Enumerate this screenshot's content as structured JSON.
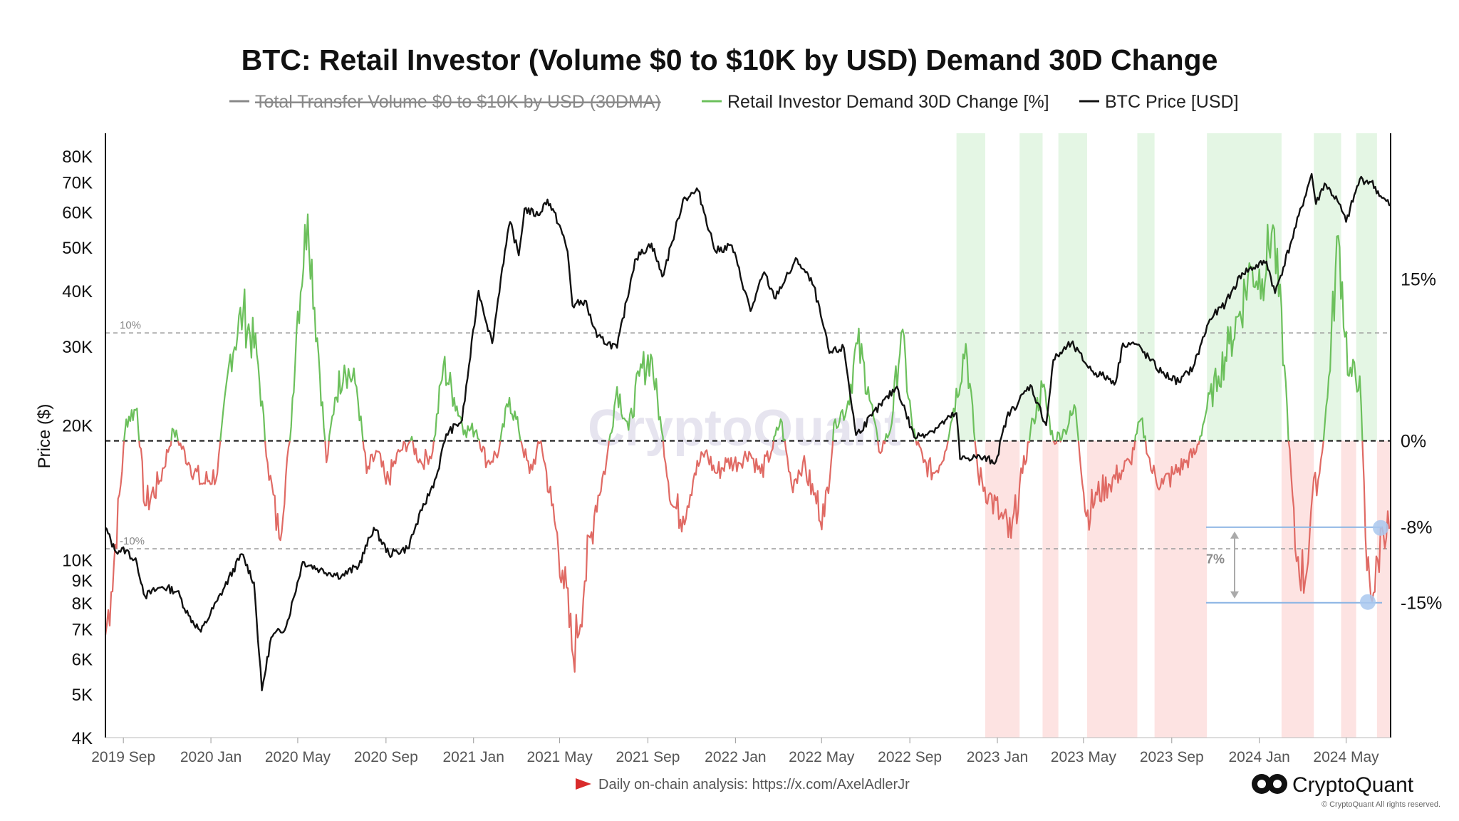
{
  "chart_data": {
    "type": "line",
    "title": "BTC: Retail Investor (Volume $0 to $10K by USD) Demand 30D Change",
    "legend": [
      {
        "label": "Total Transfer Volume  $0 to $10K by USD (30DMA)",
        "color": "#888888",
        "hidden": true
      },
      {
        "label": "Retail Investor Demand 30D Change [%]",
        "color": "#6cc05c",
        "hidden": false
      },
      {
        "label": "BTC Price [USD]",
        "color": "#111111",
        "hidden": false
      }
    ],
    "ylabel": "Price ($)",
    "left_axis": {
      "scale": "log",
      "range": [
        4000,
        90000
      ],
      "ticks": [
        "80K",
        "70K",
        "60K",
        "50K",
        "40K",
        "30K",
        "20K",
        "10K",
        "9K",
        "8K",
        "7K",
        "6K",
        "5K",
        "4K"
      ],
      "tick_values": [
        80000,
        70000,
        60000,
        50000,
        40000,
        30000,
        20000,
        10000,
        9000,
        8000,
        7000,
        6000,
        5000,
        4000
      ]
    },
    "right_axis": {
      "scale": "linear",
      "range": [
        -27.5,
        28.5
      ],
      "ticks": [
        "15%",
        "0%",
        "-8%",
        "-15%"
      ],
      "tick_values": [
        15,
        0,
        -8,
        -15
      ]
    },
    "x_axis": {
      "range": [
        "2019-08-07",
        "2024-07-02"
      ],
      "ticks": [
        "2019 Sep",
        "2020 Jan",
        "2020 May",
        "2020 Sep",
        "2021 Jan",
        "2021 May",
        "2021 Sep",
        "2022 Jan",
        "2022 May",
        "2022 Sep",
        "2023 Jan",
        "2023 May",
        "2023 Sep",
        "2024 Jan",
        "2024 May"
      ],
      "tick_dates": [
        "2019-09-01",
        "2020-01-01",
        "2020-05-01",
        "2020-09-01",
        "2021-01-01",
        "2021-05-01",
        "2021-09-01",
        "2022-01-01",
        "2022-05-01",
        "2022-09-01",
        "2023-01-01",
        "2023-05-01",
        "2023-09-01",
        "2024-01-01",
        "2024-05-01"
      ]
    },
    "reference_lines": [
      {
        "value": 10,
        "label": "10%",
        "style": "dashed",
        "color": "#9a9a9a"
      },
      {
        "value": 0,
        "label": "",
        "style": "dashed",
        "color": "#111111"
      },
      {
        "value": -10,
        "label": "-10%",
        "style": "dashed",
        "color": "#9a9a9a"
      }
    ],
    "shaded_bands": [
      {
        "start": "2022-11-05",
        "end": "2022-12-15",
        "sign": "positive"
      },
      {
        "start": "2022-12-15",
        "end": "2023-02-01",
        "sign": "negative"
      },
      {
        "start": "2023-02-01",
        "end": "2023-03-05",
        "sign": "positive"
      },
      {
        "start": "2023-03-05",
        "end": "2023-03-27",
        "sign": "negative"
      },
      {
        "start": "2023-03-27",
        "end": "2023-05-06",
        "sign": "positive"
      },
      {
        "start": "2023-05-06",
        "end": "2023-07-15",
        "sign": "negative"
      },
      {
        "start": "2023-07-15",
        "end": "2023-08-08",
        "sign": "positive"
      },
      {
        "start": "2023-08-08",
        "end": "2023-10-20",
        "sign": "negative"
      },
      {
        "start": "2023-10-20",
        "end": "2024-02-01",
        "sign": "positive"
      },
      {
        "start": "2024-02-01",
        "end": "2024-03-17",
        "sign": "negative"
      },
      {
        "start": "2024-03-17",
        "end": "2024-04-24",
        "sign": "positive"
      },
      {
        "start": "2024-04-24",
        "end": "2024-05-15",
        "sign": "negative"
      },
      {
        "start": "2024-05-15",
        "end": "2024-06-13",
        "sign": "positive"
      },
      {
        "start": "2024-06-13",
        "end": "2024-07-02",
        "sign": "negative"
      }
    ],
    "series": [
      {
        "name": "BTC Price [USD]",
        "axis": "left",
        "color": "#111111",
        "dates": [
          "2019-08-07",
          "2019-08-20",
          "2019-09-05",
          "2019-09-20",
          "2019-10-01",
          "2019-10-25",
          "2019-11-15",
          "2019-12-01",
          "2019-12-18",
          "2020-01-10",
          "2020-02-13",
          "2020-03-01",
          "2020-03-12",
          "2020-03-25",
          "2020-04-15",
          "2020-05-08",
          "2020-06-01",
          "2020-07-01",
          "2020-07-25",
          "2020-08-15",
          "2020-09-05",
          "2020-10-01",
          "2020-10-21",
          "2020-11-10",
          "2020-11-24",
          "2020-12-16",
          "2021-01-08",
          "2021-01-27",
          "2021-02-10",
          "2021-02-21",
          "2021-03-05",
          "2021-03-13",
          "2021-04-01",
          "2021-04-14",
          "2021-05-01",
          "2021-05-12",
          "2021-05-19",
          "2021-06-05",
          "2021-06-22",
          "2021-07-20",
          "2021-08-14",
          "2021-09-06",
          "2021-09-21",
          "2021-10-05",
          "2021-10-20",
          "2021-11-10",
          "2021-12-04",
          "2021-12-27",
          "2022-01-22",
          "2022-02-10",
          "2022-02-24",
          "2022-03-28",
          "2022-04-20",
          "2022-05-12",
          "2022-06-01",
          "2022-06-18",
          "2022-07-10",
          "2022-08-14",
          "2022-09-07",
          "2022-10-01",
          "2022-11-05",
          "2022-11-10",
          "2022-12-01",
          "2022-12-30",
          "2023-01-14",
          "2023-02-16",
          "2023-03-10",
          "2023-03-20",
          "2023-04-14",
          "2023-05-12",
          "2023-06-15",
          "2023-06-25",
          "2023-07-13",
          "2023-08-18",
          "2023-09-11",
          "2023-10-01",
          "2023-10-24",
          "2023-11-15",
          "2023-12-08",
          "2024-01-11",
          "2024-01-23",
          "2024-02-15",
          "2024-03-14",
          "2024-03-20",
          "2024-04-01",
          "2024-04-19",
          "2024-05-01",
          "2024-05-20",
          "2024-06-05",
          "2024-06-20",
          "2024-07-02"
        ],
        "values": [
          11800,
          10500,
          10500,
          9800,
          8300,
          8700,
          8500,
          7500,
          6900,
          8100,
          10300,
          8900,
          5100,
          6700,
          7100,
          9900,
          9500,
          9200,
          9700,
          11800,
          10300,
          10600,
          12900,
          15300,
          19100,
          20500,
          40000,
          30500,
          45000,
          57000,
          48000,
          61000,
          59000,
          64000,
          56000,
          49000,
          37000,
          38000,
          31500,
          29800,
          47000,
          51000,
          43000,
          51500,
          64000,
          67000,
          49000,
          50500,
          36000,
          44000,
          38500,
          47000,
          41000,
          29000,
          29800,
          19000,
          21000,
          24400,
          18800,
          19400,
          21300,
          16800,
          17000,
          16600,
          20800,
          24600,
          20000,
          28000,
          30500,
          26500,
          25000,
          30500,
          30400,
          26200,
          25000,
          27000,
          34500,
          37500,
          43800,
          46500,
          39500,
          51800,
          73000,
          62500,
          69500,
          63500,
          57000,
          71000,
          70000,
          64500,
          62000
        ]
      },
      {
        "name": "Retail Investor Demand 30D Change [%]",
        "axis": "right",
        "positive_color": "#6cc05c",
        "negative_color": "#e06a64",
        "dates": [
          "2019-08-07",
          "2019-08-15",
          "2019-09-05",
          "2019-09-20",
          "2019-10-01",
          "2019-10-20",
          "2019-11-10",
          "2019-12-01",
          "2019-12-20",
          "2020-01-10",
          "2020-01-28",
          "2020-02-15",
          "2020-03-05",
          "2020-03-20",
          "2020-04-05",
          "2020-04-20",
          "2020-05-01",
          "2020-05-15",
          "2020-05-30",
          "2020-06-10",
          "2020-06-22",
          "2020-07-05",
          "2020-07-22",
          "2020-08-05",
          "2020-08-20",
          "2020-09-01",
          "2020-09-20",
          "2020-10-05",
          "2020-10-20",
          "2020-11-05",
          "2020-11-20",
          "2020-12-05",
          "2020-12-20",
          "2021-01-05",
          "2021-01-20",
          "2021-02-05",
          "2021-02-20",
          "2021-03-05",
          "2021-03-20",
          "2021-04-05",
          "2021-04-20",
          "2021-05-05",
          "2021-05-20",
          "2021-06-05",
          "2021-06-20",
          "2021-07-05",
          "2021-07-20",
          "2021-08-05",
          "2021-08-20",
          "2021-09-05",
          "2021-09-20",
          "2021-10-05",
          "2021-10-20",
          "2021-11-05",
          "2021-11-20",
          "2021-12-05",
          "2021-12-20",
          "2022-01-05",
          "2022-01-20",
          "2022-02-05",
          "2022-02-20",
          "2022-03-05",
          "2022-03-20",
          "2022-04-05",
          "2022-04-20",
          "2022-05-05",
          "2022-05-20",
          "2022-06-05",
          "2022-06-20",
          "2022-07-05",
          "2022-07-20",
          "2022-08-05",
          "2022-08-20",
          "2022-09-05",
          "2022-09-20",
          "2022-10-05",
          "2022-10-20",
          "2022-11-01",
          "2022-11-18",
          "2022-12-05",
          "2022-12-20",
          "2023-01-05",
          "2023-01-20",
          "2023-02-05",
          "2023-02-20",
          "2023-03-05",
          "2023-03-20",
          "2023-04-05",
          "2023-04-20",
          "2023-05-05",
          "2023-05-20",
          "2023-06-05",
          "2023-06-20",
          "2023-07-05",
          "2023-07-20",
          "2023-08-05",
          "2023-08-20",
          "2023-09-05",
          "2023-09-20",
          "2023-10-05",
          "2023-10-20",
          "2023-11-05",
          "2023-11-20",
          "2023-12-05",
          "2023-12-20",
          "2024-01-05",
          "2024-01-20",
          "2024-02-05",
          "2024-02-20",
          "2024-03-05",
          "2024-03-15",
          "2024-03-25",
          "2024-04-05",
          "2024-04-20",
          "2024-05-05",
          "2024-05-20",
          "2024-05-30",
          "2024-06-10",
          "2024-06-20",
          "2024-07-02"
        ],
        "values": [
          -18,
          -14,
          2,
          3,
          -6,
          -4,
          1,
          -2,
          -4,
          -3,
          8,
          12,
          8,
          -2,
          -9,
          0,
          12,
          21,
          8,
          -2,
          4,
          7,
          5,
          -3,
          -1,
          -4,
          -1,
          0,
          -2,
          -1,
          7,
          4,
          1,
          1,
          -2,
          -1,
          4,
          1,
          -3,
          0,
          -6,
          -12,
          -20,
          -13,
          -6,
          -2,
          5,
          1,
          6,
          8,
          1,
          -6,
          -7,
          -3,
          -1,
          -3,
          -2,
          -2,
          -1,
          -3,
          -1,
          2,
          -4,
          -2,
          -5,
          -7,
          2,
          3,
          9,
          5,
          -1,
          1,
          10,
          1,
          -2,
          -3,
          -1,
          3,
          9,
          -3,
          -5,
          -7,
          -9,
          -3,
          2,
          5,
          0,
          1,
          3,
          -7,
          -5,
          -4,
          -3,
          -2,
          2,
          -3,
          -4,
          -3,
          -2,
          -1,
          3,
          6,
          9,
          12,
          16,
          15,
          20,
          7,
          -10,
          -13,
          -5,
          -3,
          4,
          19,
          6,
          6,
          -12,
          -14,
          -8,
          -8
        ]
      }
    ],
    "annotations": [
      {
        "type": "range-arrow",
        "from_value": -8,
        "to_value": -15,
        "label": "7%"
      }
    ]
  },
  "watermark": "CryptoQuant",
  "footer": {
    "text": "Daily on-chain analysis: https://x.com/AxelAdlerJr"
  },
  "brand": {
    "name": "CryptoQuant",
    "copyright": "© CryptoQuant All rights reserved."
  }
}
